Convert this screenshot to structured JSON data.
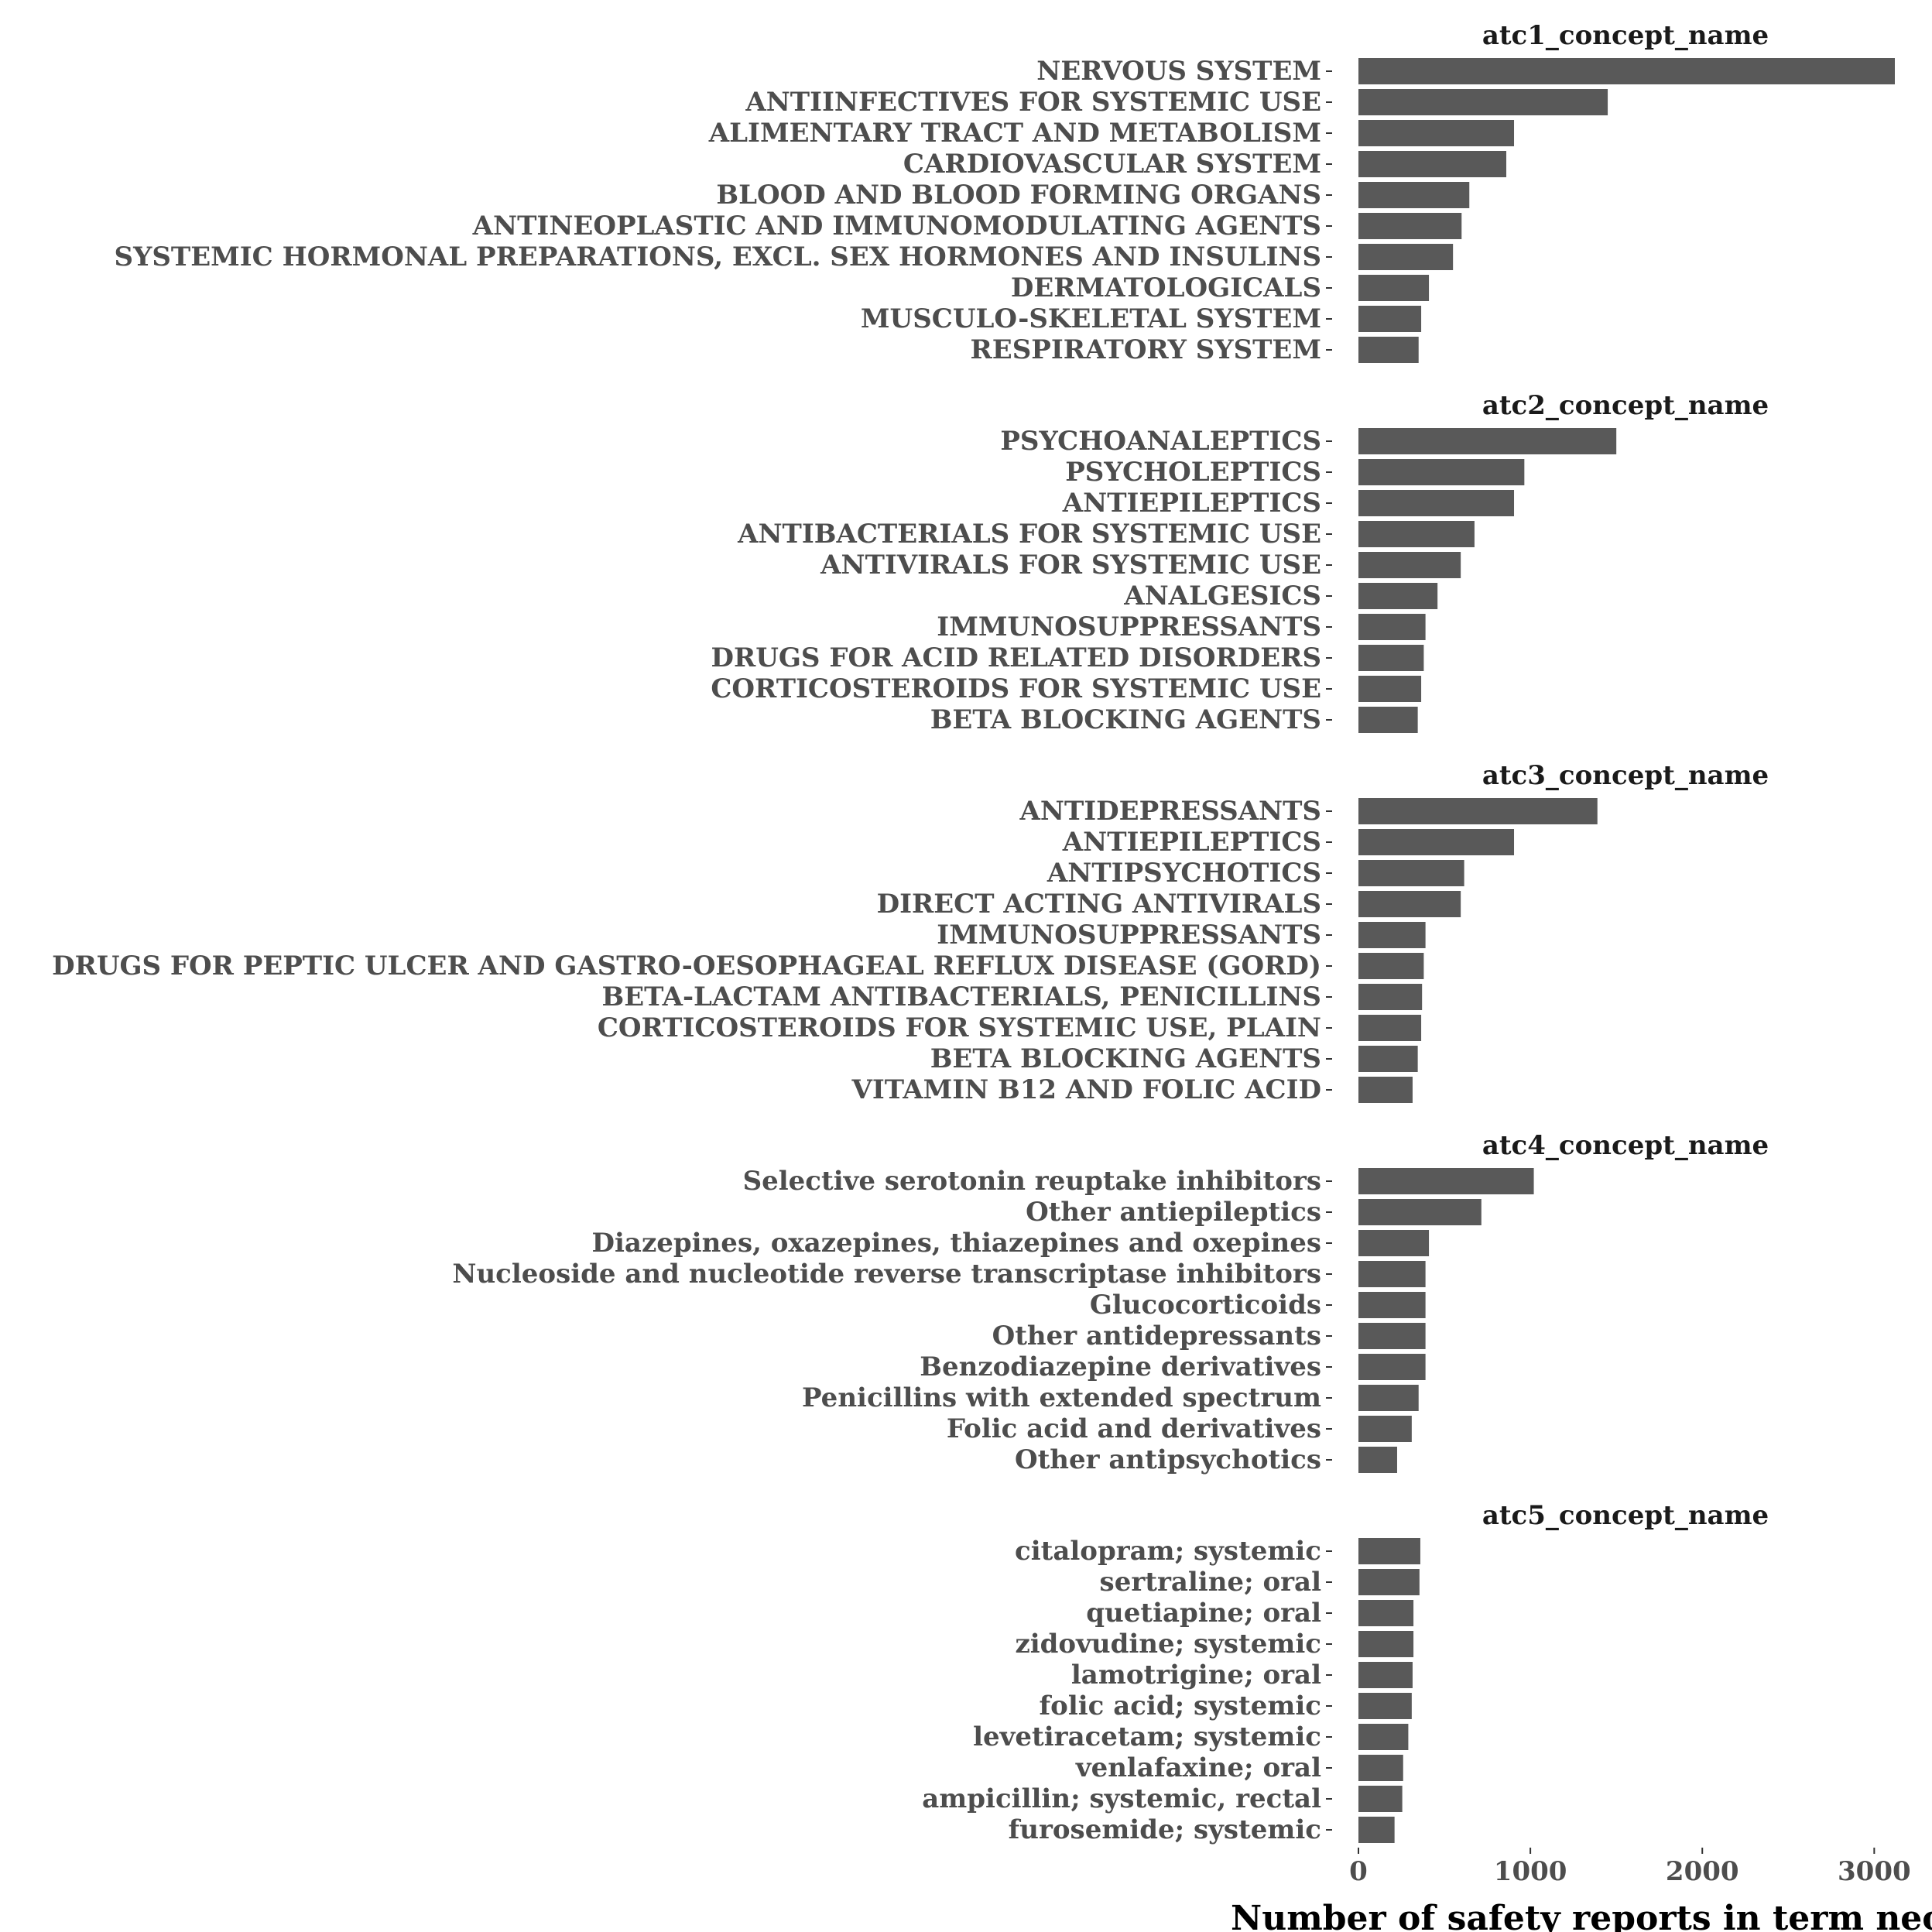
{
  "chart_data": {
    "type": "bar",
    "orientation": "horizontal",
    "facet_layout": "vertical",
    "grid": false,
    "bar_color": "#595959",
    "xlabel": "Number of safety reports in term neor",
    "xlim": [
      0,
      3120
    ],
    "x_ticks": [
      0,
      1000,
      2000,
      3000
    ],
    "panels": [
      {
        "title": "atc1_concept_name",
        "categories": [
          "NERVOUS SYSTEM",
          "ANTIINFECTIVES FOR SYSTEMIC USE",
          "ALIMENTARY TRACT AND METABOLISM",
          "CARDIOVASCULAR SYSTEM",
          "BLOOD AND BLOOD FORMING ORGANS",
          "ANTINEOPLASTIC AND IMMUNOMODULATING AGENTS",
          "SYSTEMIC HORMONAL PREPARATIONS, EXCL. SEX HORMONES AND INSULINS",
          "DERMATOLOGICALS",
          "MUSCULO-SKELETAL SYSTEM",
          "RESPIRATORY SYSTEM"
        ],
        "values": [
          3120,
          1450,
          905,
          860,
          645,
          600,
          550,
          410,
          365,
          350
        ]
      },
      {
        "title": "atc2_concept_name",
        "categories": [
          "PSYCHOANALEPTICS",
          "PSYCHOLEPTICS",
          "ANTIEPILEPTICS",
          "ANTIBACTERIALS FOR SYSTEMIC USE",
          "ANTIVIRALS FOR SYSTEMIC USE",
          "ANALGESICS",
          "IMMUNOSUPPRESSANTS",
          "DRUGS FOR ACID RELATED DISORDERS",
          "CORTICOSTEROIDS FOR SYSTEMIC USE",
          "BETA BLOCKING AGENTS"
        ],
        "values": [
          1500,
          965,
          905,
          675,
          595,
          460,
          390,
          380,
          365,
          345
        ]
      },
      {
        "title": "atc3_concept_name",
        "categories": [
          "ANTIDEPRESSANTS",
          "ANTIEPILEPTICS",
          "ANTIPSYCHOTICS",
          "DIRECT ACTING ANTIVIRALS",
          "IMMUNOSUPPRESSANTS",
          "DRUGS FOR PEPTIC ULCER AND GASTRO-OESOPHAGEAL REFLUX DISEASE (GORD)",
          "BETA-LACTAM ANTIBACTERIALS, PENICILLINS",
          "CORTICOSTEROIDS FOR SYSTEMIC USE, PLAIN",
          "BETA BLOCKING AGENTS",
          "VITAMIN B12 AND FOLIC ACID"
        ],
        "values": [
          1390,
          905,
          615,
          595,
          390,
          380,
          370,
          365,
          345,
          315
        ]
      },
      {
        "title": "atc4_concept_name",
        "categories": [
          "Selective serotonin reuptake inhibitors",
          "Other antiepileptics",
          "Diazepines, oxazepines, thiazepines and oxepines",
          "Nucleoside and nucleotide reverse transcriptase inhibitors",
          "Glucocorticoids",
          "Other antidepressants",
          "Benzodiazepine derivatives",
          "Penicillins with extended spectrum",
          "Folic acid and derivatives",
          "Other antipsychotics"
        ],
        "values": [
          1020,
          715,
          410,
          390,
          390,
          390,
          390,
          350,
          310,
          225
        ]
      },
      {
        "title": "atc5_concept_name",
        "categories": [
          "citalopram; systemic",
          "sertraline; oral",
          "quetiapine; oral",
          "zidovudine; systemic",
          "lamotrigine; oral",
          "folic acid; systemic",
          "levetiracetam; systemic",
          "venlafaxine; oral",
          "ampicillin; systemic, rectal",
          "furosemide; systemic"
        ],
        "values": [
          360,
          355,
          320,
          320,
          315,
          310,
          290,
          260,
          255,
          210
        ]
      }
    ]
  }
}
